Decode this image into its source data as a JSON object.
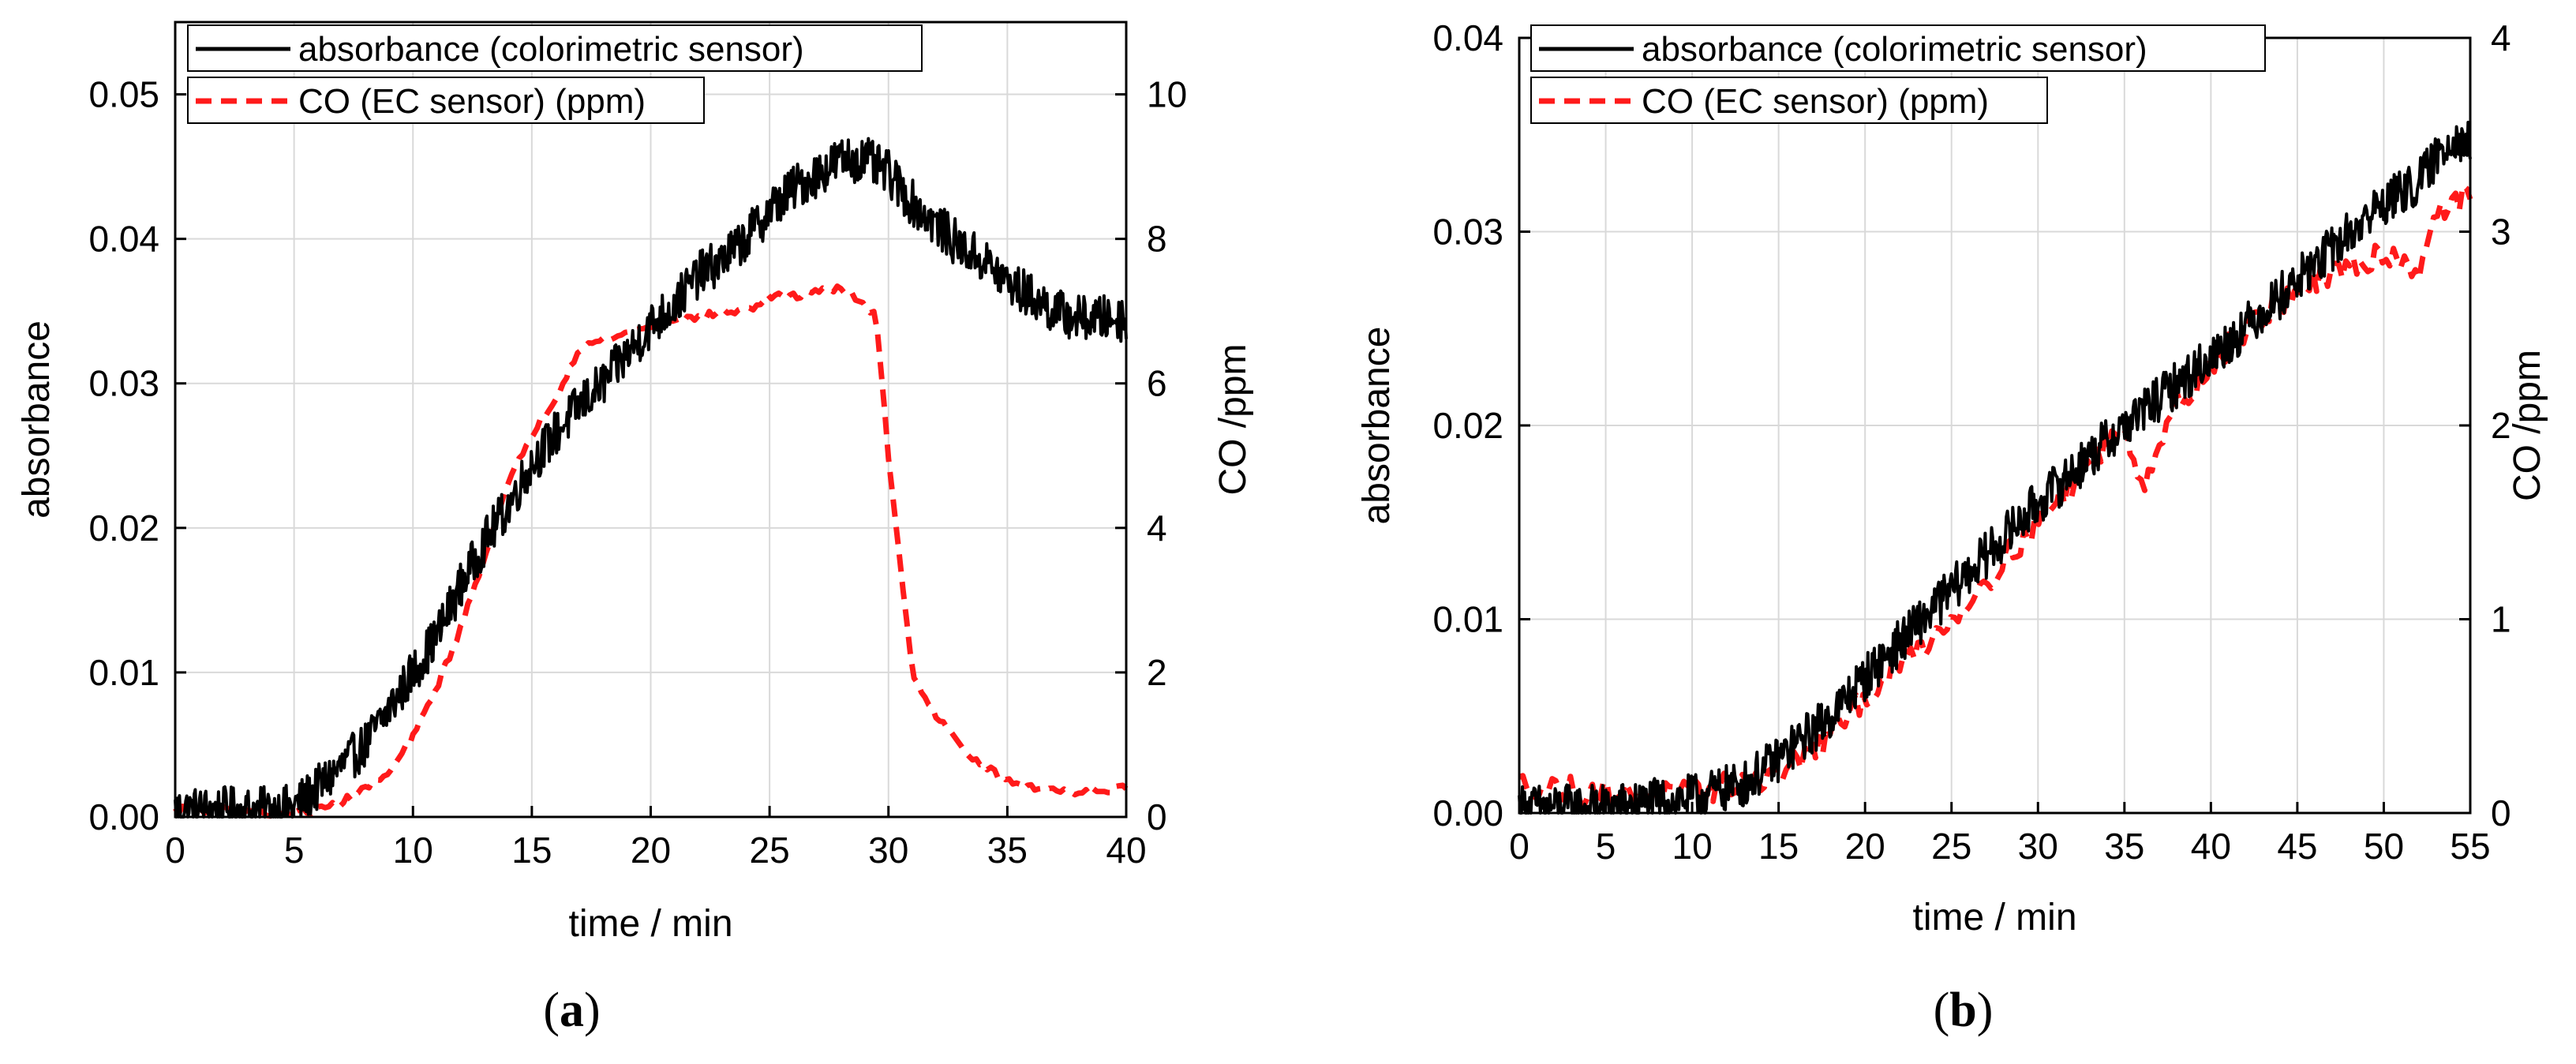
{
  "colors": {
    "absorbance": "#000000",
    "co": "#ff1a1a",
    "grid": "#d9d9d9",
    "axis": "#000000"
  },
  "chart_data": [
    {
      "type": "line",
      "panel_label": {
        "open": "(",
        "letter": "a",
        "close": ")"
      },
      "xlabel": "time / min",
      "ylabel": "absorbance",
      "y2label": "CO /ppm",
      "xlim": [
        0,
        40
      ],
      "ylim": [
        0,
        0.055
      ],
      "y2lim": [
        0,
        11
      ],
      "xticks": [
        0,
        5,
        10,
        15,
        20,
        25,
        30,
        35,
        40
      ],
      "xtick_labels": [
        "0",
        "5",
        "10",
        "15",
        "20",
        "25",
        "30",
        "35",
        "40"
      ],
      "yticks": [
        0,
        0.01,
        0.02,
        0.03,
        0.04,
        0.05
      ],
      "ytick_labels": [
        "0.00",
        "0.01",
        "0.02",
        "0.03",
        "0.04",
        "0.05"
      ],
      "y2ticks": [
        0,
        2,
        4,
        6,
        8,
        10
      ],
      "y2tick_labels": [
        "0",
        "2",
        "4",
        "6",
        "8",
        "10"
      ],
      "grid": true,
      "legend": {
        "position": "top-left",
        "entries": [
          "absorbance (colorimetric sensor)",
          "CO (EC sensor) (ppm)"
        ]
      },
      "series": [
        {
          "name": "absorbance (colorimetric sensor)",
          "axis": "left",
          "style": "solid",
          "x": [
            0,
            2,
            4,
            5,
            6,
            7,
            8,
            9,
            10,
            11,
            12,
            13,
            14,
            15,
            16,
            17,
            18,
            19,
            20,
            21,
            22,
            23,
            24,
            25,
            26,
            27,
            28,
            29,
            30,
            31,
            32,
            33,
            34,
            35,
            36,
            37,
            38,
            39,
            40
          ],
          "values": [
            0.0005,
            0.0005,
            0.0005,
            0.0007,
            0.002,
            0.0035,
            0.005,
            0.0075,
            0.01,
            0.0125,
            0.016,
            0.019,
            0.0215,
            0.0245,
            0.0265,
            0.0285,
            0.03,
            0.032,
            0.034,
            0.0355,
            0.0375,
            0.0385,
            0.04,
            0.042,
            0.0435,
            0.0445,
            0.0455,
            0.0455,
            0.0445,
            0.0425,
            0.041,
            0.0395,
            0.0385,
            0.037,
            0.036,
            0.035,
            0.0345,
            0.0345,
            0.0345
          ],
          "noise": 0.0016
        },
        {
          "name": "CO (EC sensor) (ppm)",
          "axis": "right",
          "style": "dashed",
          "x": [
            0,
            2,
            4,
            6,
            7,
            8,
            9,
            10,
            11,
            12,
            13,
            14,
            15,
            16,
            17,
            18,
            19,
            20,
            21,
            22,
            23,
            24,
            25,
            26,
            27,
            28,
            29,
            29.5,
            30,
            30.5,
            31,
            32,
            33,
            34,
            35,
            36,
            38,
            40
          ],
          "values": [
            0.1,
            0.1,
            0.05,
            0.1,
            0.2,
            0.4,
            0.6,
            1.1,
            1.8,
            2.6,
            3.6,
            4.6,
            5.3,
            5.8,
            6.5,
            6.6,
            6.7,
            6.8,
            6.9,
            6.9,
            7.0,
            7.0,
            7.2,
            7.2,
            7.3,
            7.3,
            7.1,
            6.9,
            5.0,
            3.5,
            2.0,
            1.4,
            1.0,
            0.7,
            0.5,
            0.4,
            0.35,
            0.4
          ],
          "noise": 0.05
        }
      ]
    },
    {
      "type": "line",
      "panel_label": {
        "open": "(",
        "letter": "b",
        "close": ")"
      },
      "xlabel": "time / min",
      "ylabel": "absorbance",
      "y2label": "CO /ppm",
      "xlim": [
        0,
        55
      ],
      "ylim": [
        0,
        0.04
      ],
      "y2lim": [
        0,
        4
      ],
      "xticks": [
        0,
        5,
        10,
        15,
        20,
        25,
        30,
        35,
        40,
        45,
        50,
        55
      ],
      "xtick_labels": [
        "0",
        "5",
        "10",
        "15",
        "20",
        "25",
        "30",
        "35",
        "40",
        "45",
        "50",
        "55"
      ],
      "yticks": [
        0,
        0.01,
        0.02,
        0.03,
        0.04
      ],
      "ytick_labels": [
        "0.00",
        "0.01",
        "0.02",
        "0.03",
        "0.04"
      ],
      "y2ticks": [
        0,
        1,
        2,
        3,
        4
      ],
      "y2tick_labels": [
        "0",
        "1",
        "2",
        "3",
        "4"
      ],
      "grid": true,
      "legend": {
        "position": "top-left",
        "entries": [
          "absorbance (colorimetric sensor)",
          "CO (EC sensor) (ppm)"
        ]
      },
      "series": [
        {
          "name": "absorbance (colorimetric sensor)",
          "axis": "left",
          "style": "solid",
          "x": [
            0,
            5,
            10,
            13,
            15,
            18,
            20,
            25,
            30,
            35,
            40,
            45,
            50,
            52,
            54,
            55
          ],
          "values": [
            0.0003,
            0.0003,
            0.0008,
            0.0015,
            0.0028,
            0.005,
            0.007,
            0.0115,
            0.016,
            0.02,
            0.0235,
            0.0275,
            0.0315,
            0.0325,
            0.035,
            0.0345
          ],
          "noise": 0.0012
        },
        {
          "name": "CO (EC sensor) (ppm)",
          "axis": "right",
          "style": "dashed",
          "x": [
            0,
            5,
            10,
            15,
            18,
            20,
            25,
            30,
            33,
            35,
            36,
            38,
            40,
            42,
            45,
            48,
            50,
            52,
            53,
            55
          ],
          "values": [
            0.15,
            0.1,
            0.1,
            0.2,
            0.4,
            0.6,
            1.0,
            1.5,
            1.8,
            2.0,
            1.7,
            2.1,
            2.3,
            2.5,
            2.7,
            2.8,
            2.9,
            2.8,
            3.1,
            3.2
          ],
          "noise": 0.07
        }
      ]
    }
  ]
}
